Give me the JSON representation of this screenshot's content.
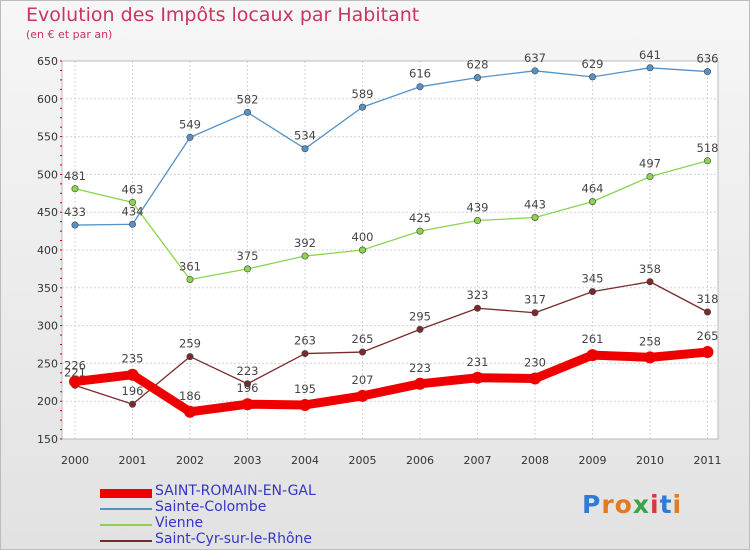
{
  "header": {
    "title": "Evolution des Impôts locaux par Habitant",
    "subtitle": "(en € et par an)"
  },
  "logo": {
    "text": "Proxiti",
    "colors": [
      "#2e7cd6",
      "#e07b22",
      "#e07b22",
      "#3ca34a",
      "#d63b3b",
      "#2e7cd6",
      "#e07b22"
    ]
  },
  "chart_data": {
    "type": "line",
    "title": "Evolution des Impôts locaux par Habitant",
    "subtitle": "(en € et par an)",
    "x": [
      "2000",
      "2001",
      "2002",
      "2003",
      "2004",
      "2005",
      "2006",
      "2007",
      "2008",
      "2009",
      "2010",
      "2011"
    ],
    "ylim": [
      150,
      650
    ],
    "yticks": [
      150,
      200,
      250,
      300,
      350,
      400,
      450,
      500,
      550,
      600,
      650
    ],
    "grid": true,
    "legend_position": "bottom-left",
    "series": [
      {
        "name": "SAINT-ROMAIN-EN-GAL",
        "color": "#ee0000",
        "values": [
          226,
          235,
          186,
          196,
          195,
          207,
          223,
          231,
          230,
          261,
          258,
          265
        ]
      },
      {
        "name": "Sainte-Colombe",
        "color": "#5592c8",
        "values": [
          433,
          434,
          549,
          582,
          534,
          589,
          616,
          628,
          637,
          629,
          641,
          636
        ]
      },
      {
        "name": "Vienne",
        "color": "#8cd450",
        "values": [
          481,
          463,
          361,
          375,
          392,
          400,
          425,
          439,
          443,
          464,
          497,
          518
        ]
      },
      {
        "name": "Saint-Cyr-sur-le-Rhône",
        "color": "#7a2a2a",
        "values": [
          221,
          196,
          259,
          223,
          263,
          265,
          295,
          323,
          317,
          345,
          358,
          318
        ]
      }
    ]
  }
}
